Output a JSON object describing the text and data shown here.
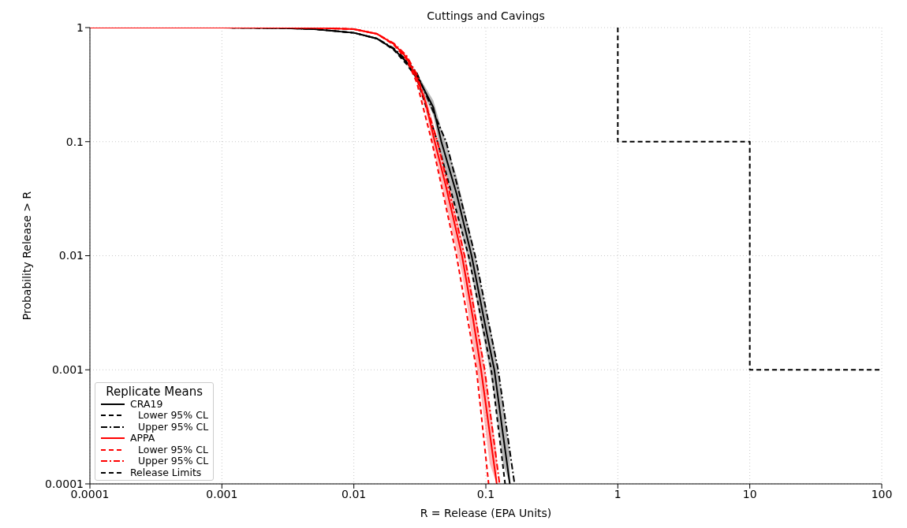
{
  "chart_data": {
    "type": "line",
    "title": "Cuttings and Cavings",
    "xlabel": "R = Release (EPA Units)",
    "ylabel": "Probability Release > R",
    "log": "xy",
    "grid": true,
    "legend": "bottom left",
    "legend_title": "Replicate Means",
    "marker": "none",
    "xlim": [
      0.0001,
      100
    ],
    "xticks": [
      0.0001,
      0.001,
      0.01,
      0.1,
      1,
      10,
      100
    ],
    "ylim": [
      0.0001,
      1
    ],
    "yticks": [
      0.0001,
      0.001,
      0.01,
      0.1,
      1
    ],
    "series": [
      {
        "name": "CRA19",
        "color": "#000000",
        "line_style": "solid",
        "x": [
          0.0001,
          0.001,
          0.003,
          0.005,
          0.01,
          0.015,
          0.02,
          0.025,
          0.03,
          0.04,
          0.046,
          0.06,
          0.078,
          0.1,
          0.116,
          0.135,
          0.152
        ],
        "values": [
          1,
          0.999,
          0.99,
          0.97,
          0.9,
          0.8,
          0.65,
          0.5,
          0.38,
          0.2,
          0.1,
          0.035,
          0.01,
          0.0023,
          0.001,
          0.00027,
          0.0001
        ],
        "lower": [
          1,
          0.999,
          0.99,
          0.97,
          0.9,
          0.8,
          0.64,
          0.48,
          0.36,
          0.17,
          0.075,
          0.024,
          0.007,
          0.0015,
          0.0006,
          0.00015,
          0.0001
        ],
        "upper": [
          1,
          0.999,
          0.99,
          0.97,
          0.9,
          0.8,
          0.66,
          0.52,
          0.4,
          0.23,
          0.13,
          0.05,
          0.014,
          0.0035,
          0.0016,
          0.0005,
          0.00018
        ]
      },
      {
        "name": "Lower 95% CL",
        "color": "#000000",
        "line_style": "dashed",
        "x": [
          0.0001,
          0.001,
          0.003,
          0.005,
          0.01,
          0.015,
          0.02,
          0.025,
          0.03,
          0.043,
          0.074,
          0.11,
          0.14
        ],
        "values": [
          1,
          0.999,
          0.99,
          0.97,
          0.9,
          0.8,
          0.64,
          0.48,
          0.36,
          0.1,
          0.01,
          0.001,
          0.0001
        ]
      },
      {
        "name": "Upper 95% CL",
        "color": "#000000",
        "line_style": "dashdot",
        "x": [
          0.0001,
          0.001,
          0.003,
          0.005,
          0.01,
          0.015,
          0.02,
          0.025,
          0.03,
          0.05,
          0.083,
          0.124,
          0.165
        ],
        "values": [
          1,
          0.999,
          0.99,
          0.97,
          0.9,
          0.8,
          0.66,
          0.52,
          0.4,
          0.1,
          0.01,
          0.001,
          0.0001
        ]
      },
      {
        "name": "APPA",
        "color": "#ff0000",
        "line_style": "solid",
        "x": [
          0.0001,
          0.001,
          0.003,
          0.005,
          0.01,
          0.015,
          0.02,
          0.025,
          0.03,
          0.035,
          0.041,
          0.05,
          0.066,
          0.08,
          0.092,
          0.107,
          0.121
        ],
        "values": [
          1,
          1,
          0.999,
          0.995,
          0.97,
          0.88,
          0.72,
          0.55,
          0.36,
          0.22,
          0.1,
          0.04,
          0.01,
          0.0028,
          0.001,
          0.00028,
          0.0001
        ],
        "lower": [
          1,
          1,
          0.999,
          0.995,
          0.97,
          0.88,
          0.71,
          0.53,
          0.33,
          0.19,
          0.08,
          0.028,
          0.007,
          0.0017,
          0.0006,
          0.00015,
          0.0001
        ],
        "upper": [
          1,
          1,
          0.999,
          0.995,
          0.97,
          0.88,
          0.73,
          0.57,
          0.39,
          0.25,
          0.13,
          0.055,
          0.014,
          0.0045,
          0.0016,
          0.0005,
          0.00018
        ]
      },
      {
        "name": "Lower 95% CL",
        "color": "#ff0000",
        "line_style": "dashed",
        "x": [
          0.0001,
          0.001,
          0.003,
          0.005,
          0.01,
          0.015,
          0.02,
          0.025,
          0.03,
          0.039,
          0.06,
          0.085,
          0.105
        ],
        "values": [
          1,
          1,
          0.999,
          0.995,
          0.97,
          0.88,
          0.71,
          0.53,
          0.33,
          0.1,
          0.01,
          0.001,
          0.0001
        ]
      },
      {
        "name": "Upper 95% CL",
        "color": "#ff0000",
        "line_style": "dashdot",
        "x": [
          0.0001,
          0.001,
          0.003,
          0.005,
          0.01,
          0.015,
          0.02,
          0.025,
          0.03,
          0.043,
          0.069,
          0.098,
          0.127
        ],
        "values": [
          1,
          1,
          0.999,
          0.995,
          0.97,
          0.88,
          0.73,
          0.57,
          0.39,
          0.1,
          0.01,
          0.001,
          0.0001
        ]
      },
      {
        "name": "Release Limits",
        "color": "#000000",
        "line_style": "dashed",
        "x": [
          1,
          1,
          10,
          10,
          100
        ],
        "values": [
          1,
          0.1,
          0.1,
          0.001,
          0.001
        ]
      }
    ]
  }
}
